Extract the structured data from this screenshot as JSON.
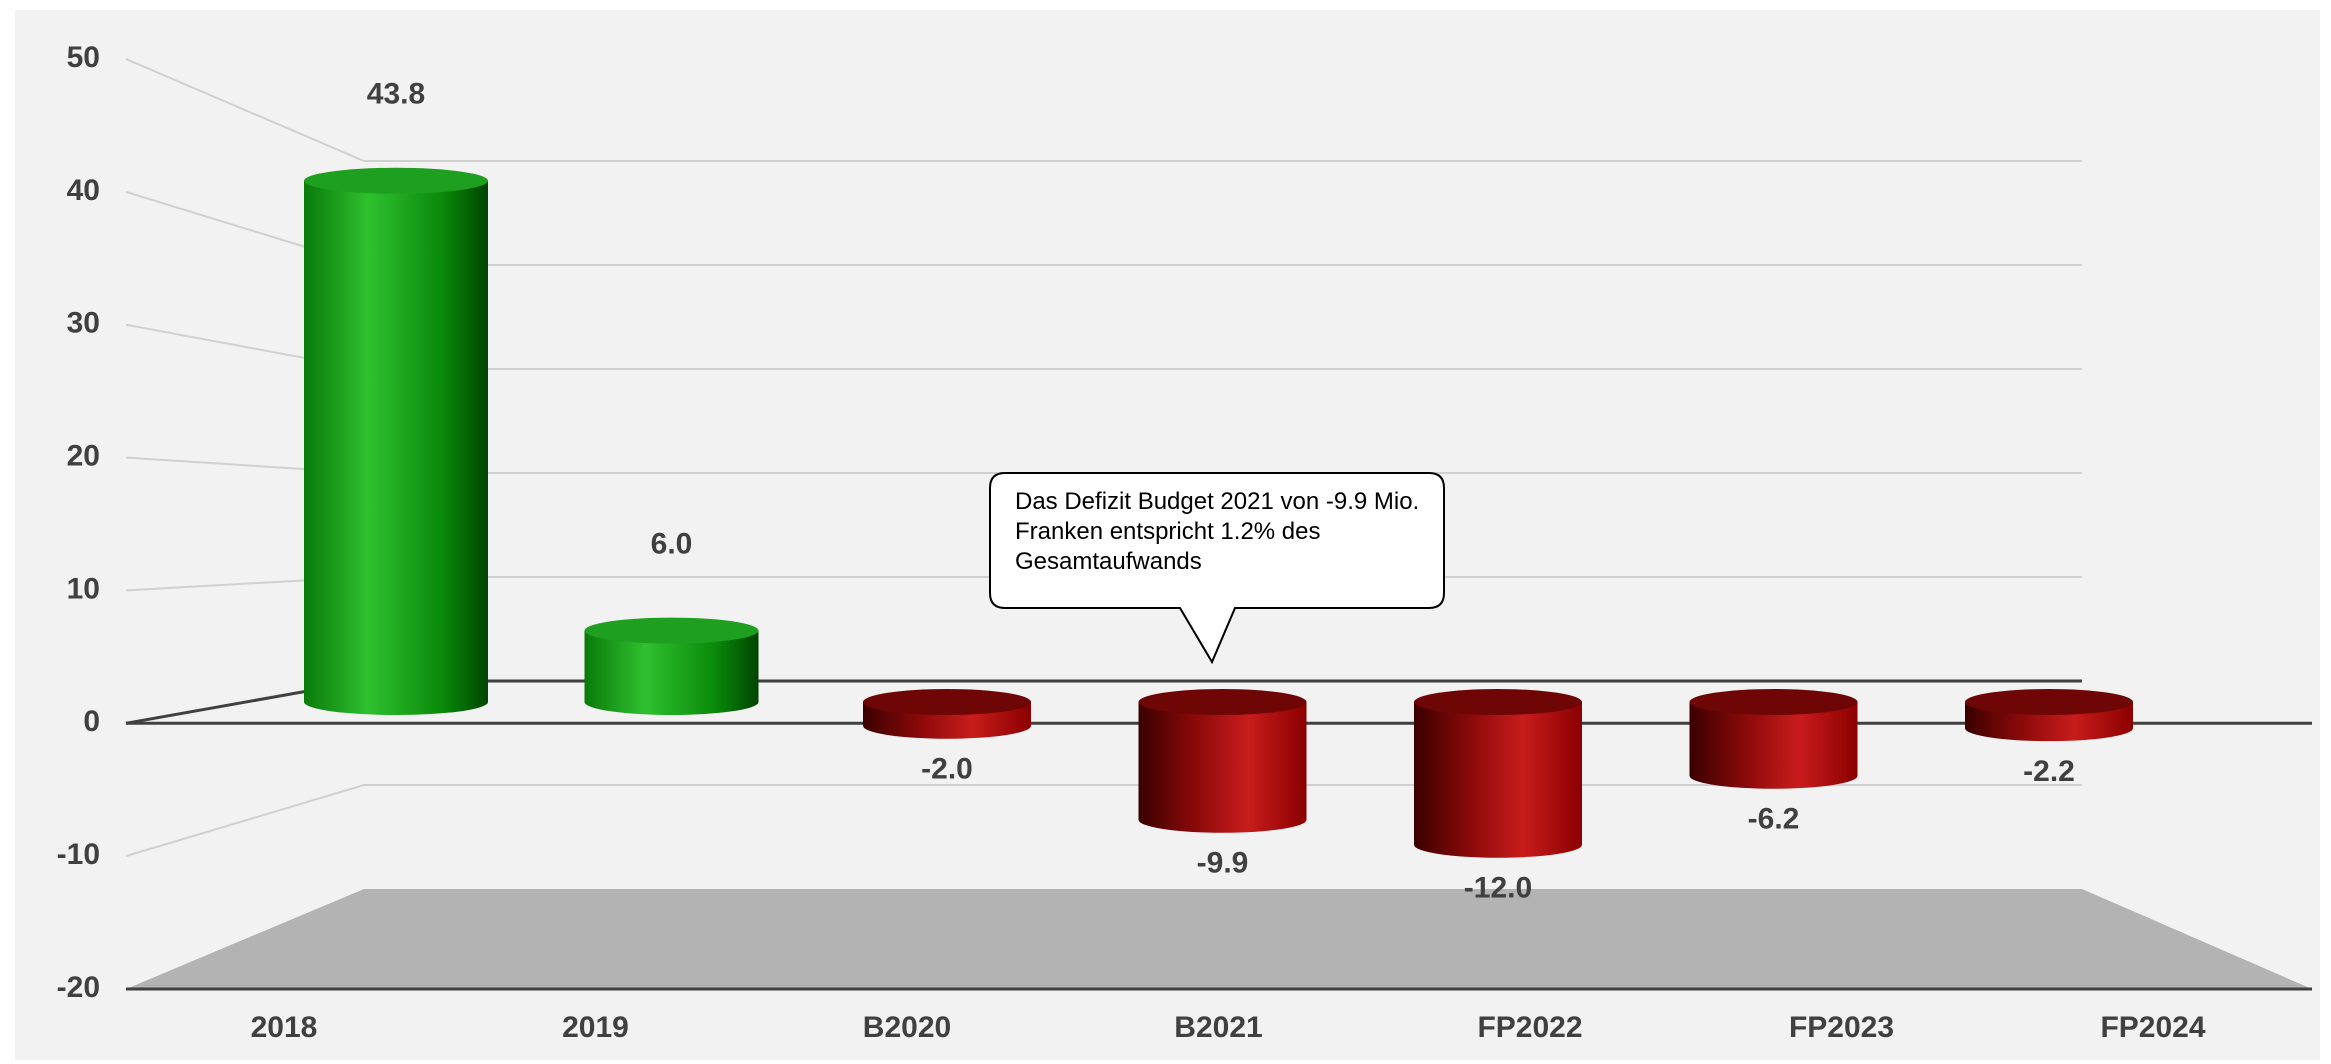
{
  "chart_data": {
    "type": "bar3d",
    "categories": [
      "2018",
      "2019",
      "B2020",
      "B2021",
      "FP2022",
      "FP2023",
      "FP2024"
    ],
    "values": [
      43.8,
      6.0,
      -2.0,
      -9.9,
      -12.0,
      -6.2,
      -2.2
    ],
    "value_labels": [
      "43.8",
      "6.0",
      "-2.0",
      "-9.9",
      "-12.0",
      "-6.2",
      "-2.2"
    ],
    "positive_color": "#1a9e1a",
    "negative_color": "#b01010",
    "ylim": [
      -20,
      50
    ],
    "yticks": [
      -20,
      -10,
      0,
      10,
      20,
      30,
      40,
      50
    ],
    "grid": true,
    "annotation": "Das Defizit Budget 2021 von -9.9 Mio. Franken entspricht 1.2% des Gesamtaufwands"
  }
}
